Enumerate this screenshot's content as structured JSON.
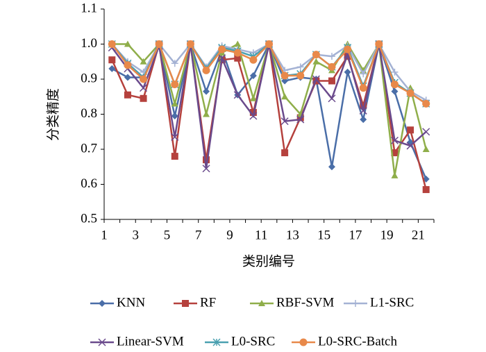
{
  "chart_data": {
    "type": "line",
    "y_label": "分类精度",
    "x_label": "类别编号",
    "categories": [
      "1",
      null,
      "3",
      null,
      "5",
      null,
      "7",
      null,
      "9",
      null,
      "11",
      null,
      "13",
      null,
      "15",
      null,
      "17",
      null,
      "19",
      null,
      "21"
    ],
    "ylim": [
      0.5,
      1.1
    ],
    "yticks": [
      0.5,
      0.6,
      0.7,
      0.8,
      0.9,
      {
        "value": 1,
        "label": "1.0"
      },
      1.1
    ],
    "series": [
      {
        "name": "KNN",
        "color": "#4a6ea8",
        "marker": "diamond",
        "values": [
          0.93,
          0.905,
          0.905,
          1.0,
          0.795,
          1.0,
          0.865,
          0.985,
          0.855,
          0.91,
          1.0,
          0.895,
          0.905,
          0.9,
          0.65,
          0.92,
          0.785,
          1.0,
          0.865,
          0.72,
          0.615
        ]
      },
      {
        "name": "RF",
        "color": "#b5413d",
        "marker": "square",
        "values": [
          0.955,
          0.855,
          0.845,
          1.0,
          0.68,
          1.0,
          0.67,
          0.955,
          0.96,
          0.805,
          1.0,
          0.69,
          0.79,
          0.895,
          0.895,
          0.965,
          0.825,
          1.0,
          0.69,
          0.755,
          0.585
        ]
      },
      {
        "name": "RBF-SVM",
        "color": "#8fae4a",
        "marker": "triangle",
        "values": [
          1.0,
          1.0,
          0.95,
          1.0,
          0.83,
          1.0,
          0.8,
          0.975,
          1.0,
          0.845,
          1.0,
          0.85,
          0.8,
          0.95,
          0.925,
          1.0,
          0.925,
          1.0,
          0.625,
          0.875,
          0.7
        ]
      },
      {
        "name": "L1-SRC",
        "color": "#a4b2d4",
        "marker": "plus",
        "values": [
          1.0,
          0.95,
          0.92,
          1.0,
          0.945,
          1.0,
          0.935,
          0.995,
          0.985,
          0.975,
          1.0,
          0.925,
          0.935,
          0.97,
          0.965,
          0.995,
          0.915,
          1.0,
          0.92,
          0.865,
          0.84
        ]
      },
      {
        "name": "Linear-SVM",
        "color": "#6a4a8c",
        "marker": "cross",
        "values": [
          0.99,
          0.93,
          0.875,
          0.995,
          0.735,
          1.0,
          0.645,
          0.96,
          0.855,
          0.795,
          1.0,
          0.78,
          0.785,
          0.9,
          0.845,
          0.97,
          0.81,
          1.0,
          0.725,
          0.71,
          0.75
        ]
      },
      {
        "name": "L0-SRC",
        "color": "#4aa0b0",
        "marker": "star",
        "values": [
          1.0,
          0.945,
          0.905,
          1.0,
          0.885,
          1.0,
          0.93,
          0.99,
          0.98,
          0.965,
          1.0,
          0.91,
          0.915,
          0.97,
          0.935,
          0.99,
          0.88,
          1.0,
          0.89,
          0.86,
          0.83
        ]
      },
      {
        "name": "L0-SRC-Batch",
        "color": "#e8894a",
        "marker": "circle",
        "values": [
          1.0,
          0.94,
          0.9,
          1.0,
          0.885,
          1.0,
          0.925,
          0.985,
          0.975,
          0.955,
          1.0,
          0.91,
          0.91,
          0.97,
          0.935,
          0.985,
          0.875,
          1.0,
          0.885,
          0.86,
          0.83
        ]
      }
    ]
  }
}
